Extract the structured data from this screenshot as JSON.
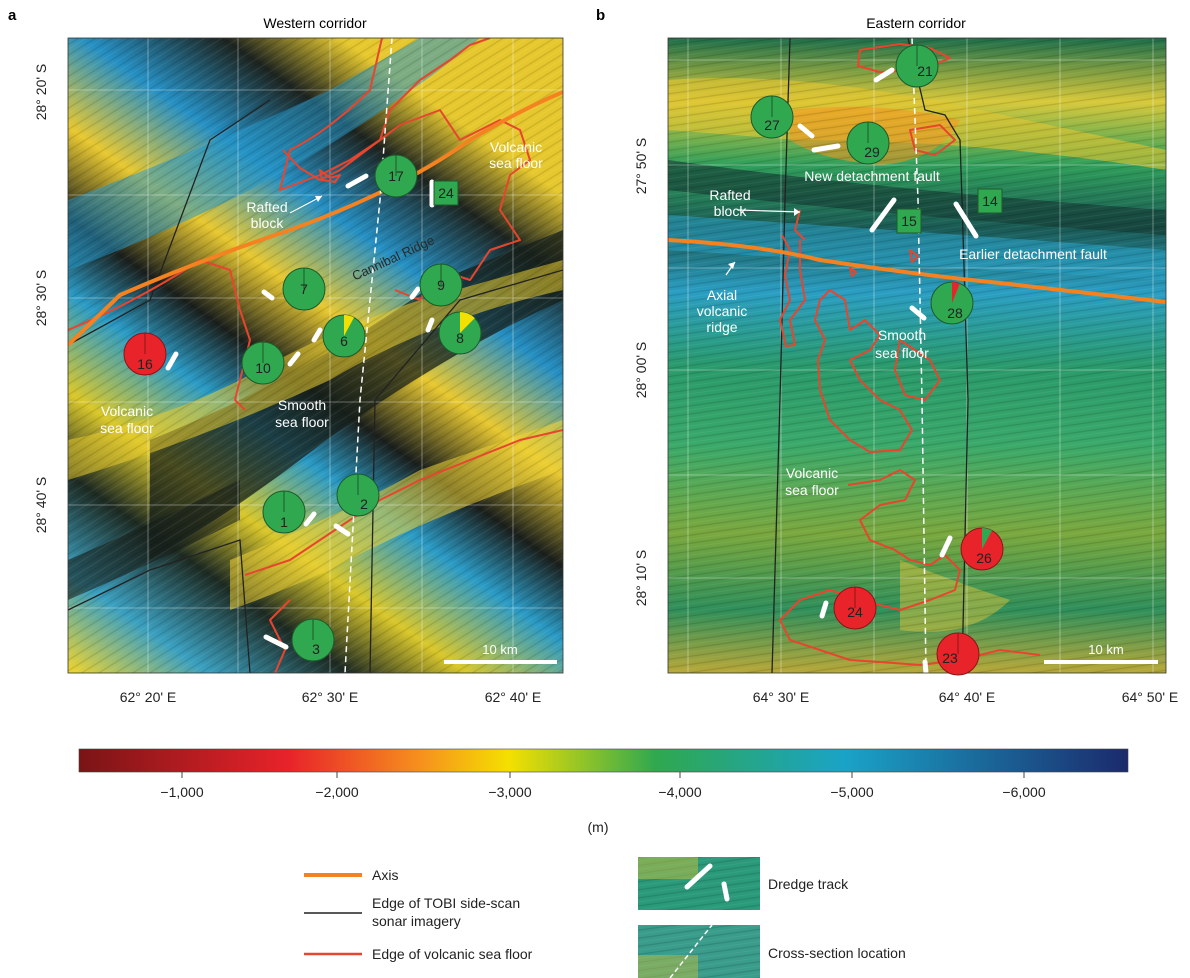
{
  "panels": [
    {
      "letter": "a",
      "title": "Western corridor",
      "lat_ticks": [
        "28° 20' S",
        "28° 30' S",
        "28° 40' S"
      ],
      "lon_ticks": [
        "62° 20' E",
        "62° 30' E",
        "62° 40' E"
      ],
      "scale_bar": "10 km",
      "labels": {
        "volcanic_ne_1": "Volcanic",
        "volcanic_ne_2": "sea floor",
        "rafted_1": "Rafted",
        "rafted_2": "block",
        "ridge": "Cannibal Ridge",
        "volcanic_w_1": "Volcanic",
        "volcanic_w_2": "sea floor",
        "smooth_1": "Smooth",
        "smooth_2": "sea floor"
      },
      "stations": [
        {
          "id": "17",
          "color": "#2fa84f",
          "kind": "pie"
        },
        {
          "id": "24",
          "color": "#2fa84f",
          "kind": "square"
        },
        {
          "id": "7",
          "color": "#2fa84f",
          "kind": "pie"
        },
        {
          "id": "9",
          "color": "#2fa84f",
          "kind": "pie"
        },
        {
          "id": "8",
          "color": "#2fa84f",
          "kind": "pie",
          "minor_fraction": 0.12,
          "minor_color": "#f4e000"
        },
        {
          "id": "6",
          "color": "#2fa84f",
          "kind": "pie",
          "minor_fraction": 0.08,
          "minor_color": "#f4e000"
        },
        {
          "id": "10",
          "color": "#2fa84f",
          "kind": "pie"
        },
        {
          "id": "16",
          "color": "#e8232a",
          "kind": "pie"
        },
        {
          "id": "2",
          "color": "#2fa84f",
          "kind": "pie"
        },
        {
          "id": "1",
          "color": "#2fa84f",
          "kind": "pie"
        },
        {
          "id": "3",
          "color": "#2fa84f",
          "kind": "pie"
        }
      ]
    },
    {
      "letter": "b",
      "title": "Eastern corridor",
      "lat_ticks": [
        "27° 50' S",
        "28° 00' S",
        "28° 10' S"
      ],
      "lon_ticks": [
        "64° 30' E",
        "64° 40' E",
        "64° 50' E"
      ],
      "scale_bar": "10 km",
      "labels": {
        "new_fault": "New detachment fault",
        "rafted_1": "Rafted",
        "rafted_2": "block",
        "earlier_fault": "Earlier detachment fault",
        "axial_1": "Axial",
        "axial_2": "volcanic",
        "axial_3": "ridge",
        "smooth_1": "Smooth",
        "smooth_2": "sea floor",
        "volcanic_1": "Volcanic",
        "volcanic_2": "sea floor"
      },
      "stations": [
        {
          "id": "21",
          "color": "#2fa84f",
          "kind": "pie"
        },
        {
          "id": "27",
          "color": "#2fa84f",
          "kind": "pie"
        },
        {
          "id": "29",
          "color": "#2fa84f",
          "kind": "pie"
        },
        {
          "id": "14",
          "color": "#2fa84f",
          "kind": "square"
        },
        {
          "id": "15",
          "color": "#2fa84f",
          "kind": "square"
        },
        {
          "id": "28",
          "color": "#2fa84f",
          "kind": "pie",
          "minor_fraction": 0.06,
          "minor_color": "#e8232a"
        },
        {
          "id": "26",
          "color": "#e8232a",
          "kind": "pie",
          "minor_fraction": 0.08,
          "minor_color": "#2fa84f"
        },
        {
          "id": "24",
          "color": "#e8232a",
          "kind": "pie"
        },
        {
          "id": "23",
          "color": "#e8232a",
          "kind": "pie"
        }
      ]
    }
  ],
  "colorbar": {
    "ticks": [
      "−1,000",
      "−2,000",
      "−3,000",
      "−4,000",
      "−5,000",
      "−6,000"
    ],
    "unit": "(m)",
    "colors": [
      "#7a1416",
      "#e8232a",
      "#f7941d",
      "#f4e000",
      "#2fa84f",
      "#1aa3c7",
      "#1b2a6b"
    ]
  },
  "legend": {
    "axis": "Axis",
    "tobi_1": "Edge of TOBI side-scan",
    "tobi_2": "sonar imagery",
    "volcanic_edge": "Edge of volcanic sea floor",
    "dredge": "Dredge track",
    "cross_section": "Cross-section location"
  },
  "colors": {
    "axis": "#f58220",
    "volcanic_edge": "#e8452e",
    "tobi": "#222222",
    "dredge": "#ffffff"
  }
}
